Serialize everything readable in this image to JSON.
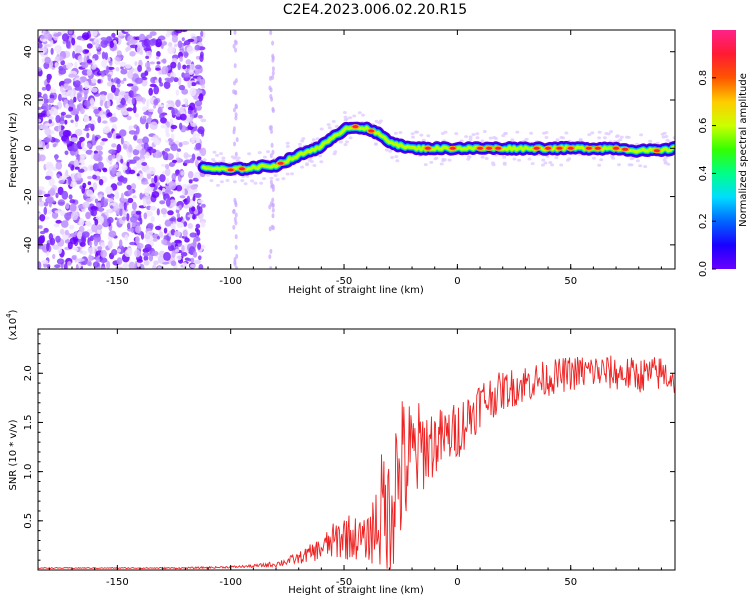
{
  "title": "C2E4.2023.006.02.20.R15",
  "colors": {
    "snr_line": "#ee2222",
    "colormap": [
      "#ffffff",
      "#e6d4ff",
      "#b07cff",
      "#6a00ff",
      "#0000ff",
      "#00ccff",
      "#00ff33",
      "#bbff00",
      "#ffbb00",
      "#ff2222",
      "#ff2288"
    ]
  },
  "chart_data": [
    {
      "type": "heatmap",
      "title": "C2E4.2023.006.02.20.R15",
      "xlabel": "Height of straight line (km)",
      "ylabel": "Frequency (Hz)",
      "xlim": [
        -185,
        96
      ],
      "ylim": [
        -50,
        49
      ],
      "xticks": [
        -150,
        -100,
        -50,
        0,
        50
      ],
      "yticks": [
        -40,
        -20,
        0,
        20,
        40
      ],
      "colorbar": {
        "label": "Normalized spectral amplitude",
        "range": [
          0,
          1
        ],
        "ticks": [
          0.0,
          0.2,
          0.4,
          0.6,
          0.8
        ]
      },
      "ridge": {
        "x": [
          -112,
          -100,
          -90,
          -80,
          -70,
          -60,
          -55,
          -50,
          -45,
          -40,
          -35,
          -30,
          -25,
          -20,
          -10,
          0,
          10,
          20,
          30,
          40,
          50,
          60,
          70,
          80,
          90,
          96
        ],
        "y": [
          -8,
          -9,
          -8,
          -7,
          -3,
          1,
          4,
          8,
          9,
          8,
          6,
          3,
          1,
          0,
          0,
          0,
          0,
          0,
          0,
          0,
          0,
          0,
          0,
          -1,
          -1,
          0
        ]
      },
      "noise_region_x": [
        -185,
        -112
      ]
    },
    {
      "type": "line",
      "xlabel": "Height of straight line (km)",
      "ylabel": "SNR (10 * v/v)",
      "yscale_label": "(x10^4)",
      "xlim": [
        -185,
        96
      ],
      "ylim": [
        0,
        2.45
      ],
      "xticks": [
        -150,
        -100,
        -50,
        0,
        50
      ],
      "yticks": [
        0.5,
        1.0,
        1.5,
        2.0
      ],
      "series": [
        {
          "x": [
            -185,
            -150,
            -120,
            -100,
            -90,
            -80,
            -70,
            -60,
            -50,
            -40,
            -35,
            -30,
            -25,
            -20,
            -15,
            -10,
            -5,
            0,
            5,
            10,
            20,
            30,
            40,
            50,
            60,
            70,
            80,
            90,
            96
          ],
          "y": [
            0.02,
            0.02,
            0.02,
            0.03,
            0.04,
            0.06,
            0.12,
            0.22,
            0.35,
            0.3,
            0.5,
            0.75,
            1.0,
            1.15,
            1.25,
            1.3,
            1.35,
            1.42,
            1.55,
            1.7,
            1.82,
            1.9,
            1.95,
            2.0,
            2.02,
            2.0,
            1.98,
            2.0,
            1.95
          ],
          "amplitude": [
            0.005,
            0.005,
            0.008,
            0.01,
            0.015,
            0.03,
            0.06,
            0.12,
            0.25,
            0.2,
            0.5,
            0.9,
            0.8,
            0.6,
            0.45,
            0.35,
            0.3,
            0.3,
            0.28,
            0.25,
            0.2,
            0.2,
            0.18,
            0.18,
            0.18,
            0.18,
            0.18,
            0.18,
            0.18
          ]
        }
      ]
    }
  ]
}
